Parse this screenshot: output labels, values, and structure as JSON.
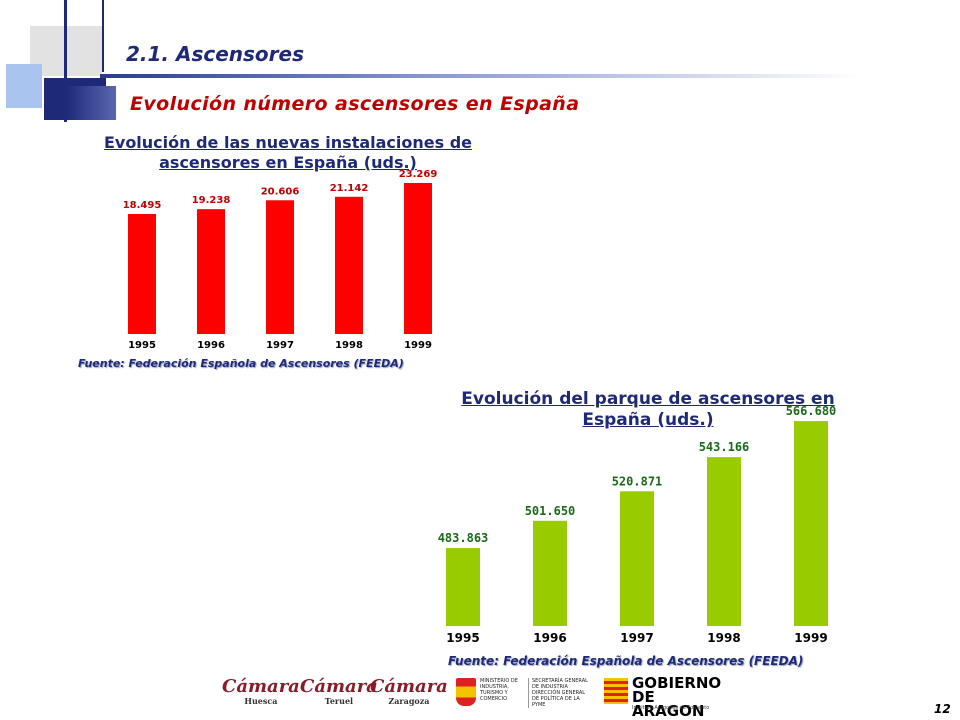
{
  "header": {
    "section_title": "2.1. Ascensores",
    "subtitle": "Evolución número ascensores en España"
  },
  "chart_data": [
    {
      "type": "bar",
      "title": "Evolución de las nuevas instalaciones de ascensores en España (uds.)",
      "categories": [
        "1995",
        "1996",
        "1997",
        "1998",
        "1999"
      ],
      "values": [
        18495,
        19238,
        20606,
        21142,
        23269
      ],
      "value_labels": [
        "18.495",
        "19.238",
        "20.606",
        "21.142",
        "23.269"
      ],
      "ylim": [
        0,
        24500
      ],
      "grid": false,
      "legend": "none",
      "bar_color": "#ff0000",
      "label_color": "#c00000",
      "source": "Fuente: Federación Española de Ascensores (FEEDA)"
    },
    {
      "type": "bar",
      "title": "Evolución del parque de ascensores en España (uds.)",
      "categories": [
        "1995",
        "1996",
        "1997",
        "1998",
        "1999"
      ],
      "values": [
        483863,
        501650,
        520871,
        543166,
        566680
      ],
      "value_labels": [
        "483.863",
        "501.650",
        "520.871",
        "543.166",
        "566.680"
      ],
      "ylim": [
        433000,
        570000
      ],
      "grid": false,
      "legend": "none",
      "bar_color": "#99cc00",
      "label_color": "#1a6a1a",
      "source": "Fuente: Federación Española de Ascensores (FEEDA)"
    }
  ],
  "footer": {
    "logos": [
      {
        "word": "Cámara",
        "city": "Huesca",
        "icon": "camara-huesca-logo"
      },
      {
        "word": "Cámara",
        "city": "Teruel",
        "icon": "camara-teruel-logo"
      },
      {
        "word": "Cámara",
        "city": "Zaragoza",
        "icon": "camara-zaragoza-logo"
      }
    ],
    "ministry_left": "MINISTERIO DE INDUSTRIA, TURISMO Y COMERCIO",
    "ministry_right": "SECRETARÍA GENERAL DE INDUSTRIA DIRECCIÓN GENERAL DE POLÍTICA DE LA PYME",
    "aragon_name": "GOBIERNO DE ARAGON",
    "aragon_sub": "Instituto Aragonés de Fomento",
    "page_number": "12"
  }
}
